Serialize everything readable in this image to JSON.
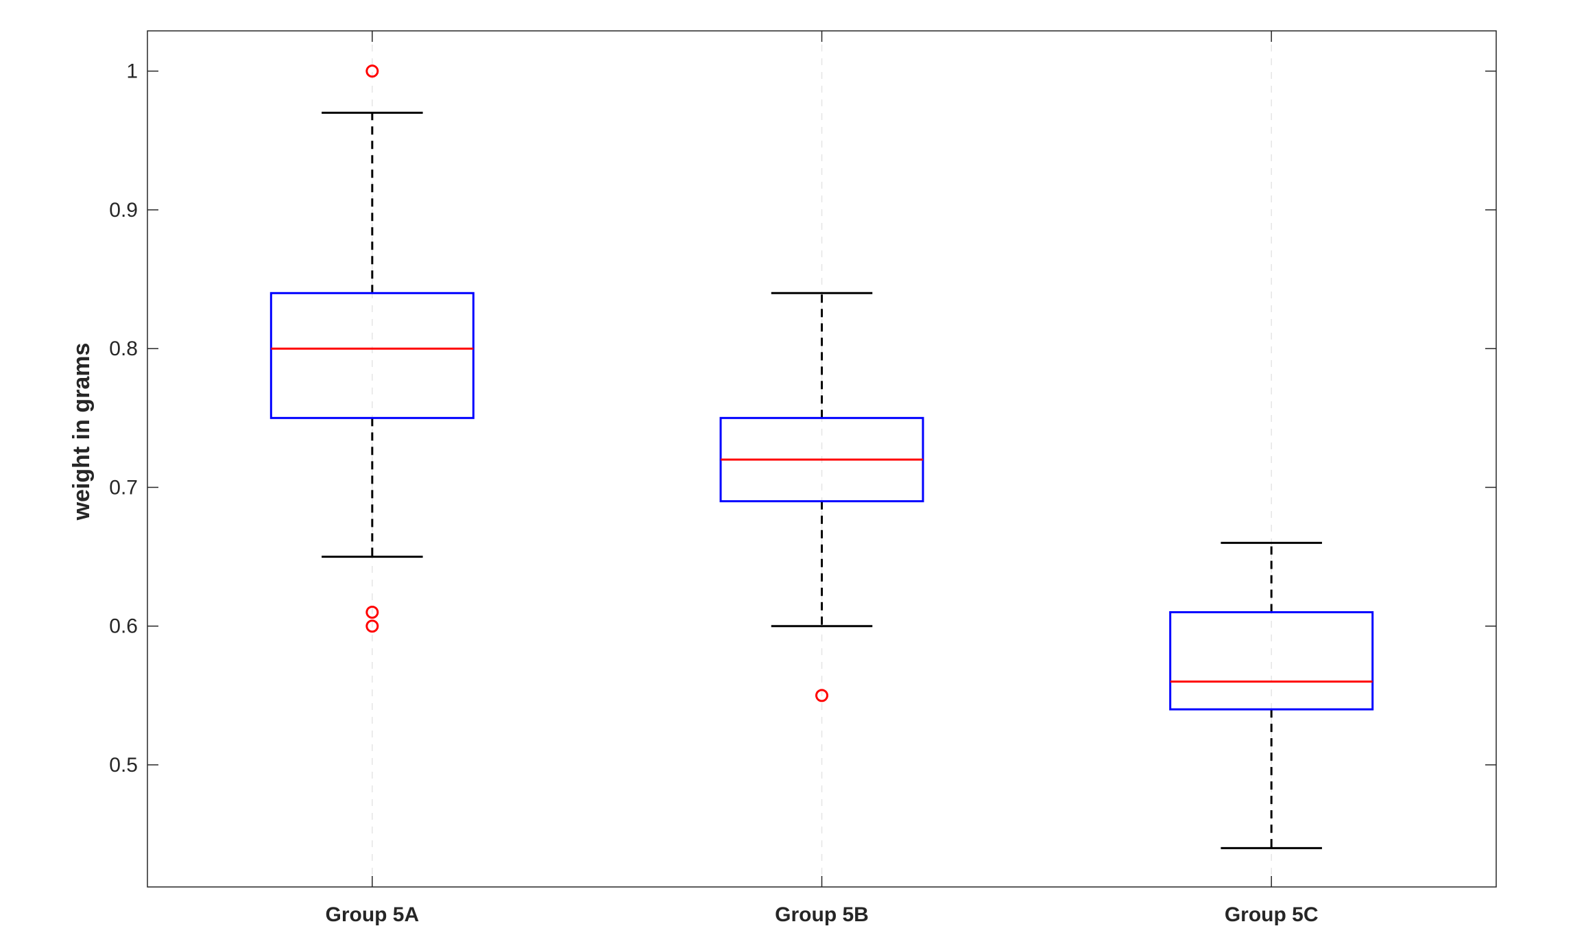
{
  "chart_data": {
    "type": "box",
    "title": "",
    "xlabel": "",
    "ylabel": "weight in grams",
    "ylim": [
      0.412,
      1.029
    ],
    "yticks": [
      0.5,
      0.6,
      0.7,
      0.8,
      0.9,
      1
    ],
    "ytick_labels": [
      "0.5",
      "0.6",
      "0.7",
      "0.8",
      "0.9",
      "1"
    ],
    "grid": {
      "x": true,
      "y": false
    },
    "categories": [
      "Group 5A",
      "Group 5B",
      "Group 5C"
    ],
    "boxes": [
      {
        "category": "Group 5A",
        "whisker_low": 0.65,
        "q1": 0.75,
        "median": 0.8,
        "q3": 0.84,
        "whisker_high": 0.97,
        "outliers": [
          1.0,
          0.61,
          0.6
        ]
      },
      {
        "category": "Group 5B",
        "whisker_low": 0.6,
        "q1": 0.69,
        "median": 0.72,
        "q3": 0.75,
        "whisker_high": 0.84,
        "outliers": [
          0.55
        ]
      },
      {
        "category": "Group 5C",
        "whisker_low": 0.44,
        "q1": 0.54,
        "median": 0.56,
        "q3": 0.61,
        "whisker_high": 0.66,
        "outliers": []
      }
    ],
    "colors": {
      "box": "#0000ff",
      "median": "#ff0000",
      "whisker": "#000000",
      "outlier": "#ff0000",
      "grid": "#e5e5e5",
      "axis": "#262626"
    }
  }
}
